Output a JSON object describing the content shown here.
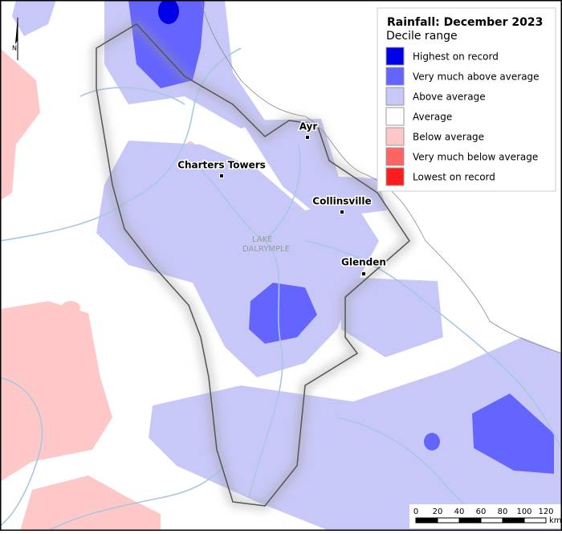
{
  "legend": {
    "title": "Rainfall: December 2023",
    "subtitle": "Decile range",
    "items": [
      {
        "label": "Highest on record",
        "color": "#0000e8"
      },
      {
        "label": "Very much above average",
        "color": "#6464ff"
      },
      {
        "label": "Above average",
        "color": "#c8c8f8"
      },
      {
        "label": "Average",
        "color": "#ffffff"
      },
      {
        "label": "Below average",
        "color": "#ffc8c8"
      },
      {
        "label": "Very much below average",
        "color": "#ff6464"
      },
      {
        "label": "Lowest on record",
        "color": "#ff1c1c"
      }
    ]
  },
  "places": [
    "Ayr",
    "Charters Towers",
    "Collinsville",
    "Glenden"
  ],
  "lake_label": [
    "LAKE",
    "DALRYMPLE"
  ],
  "north": "N",
  "scale": {
    "ticks": [
      0,
      20,
      40,
      60,
      80,
      100,
      120
    ],
    "unit": "km"
  }
}
